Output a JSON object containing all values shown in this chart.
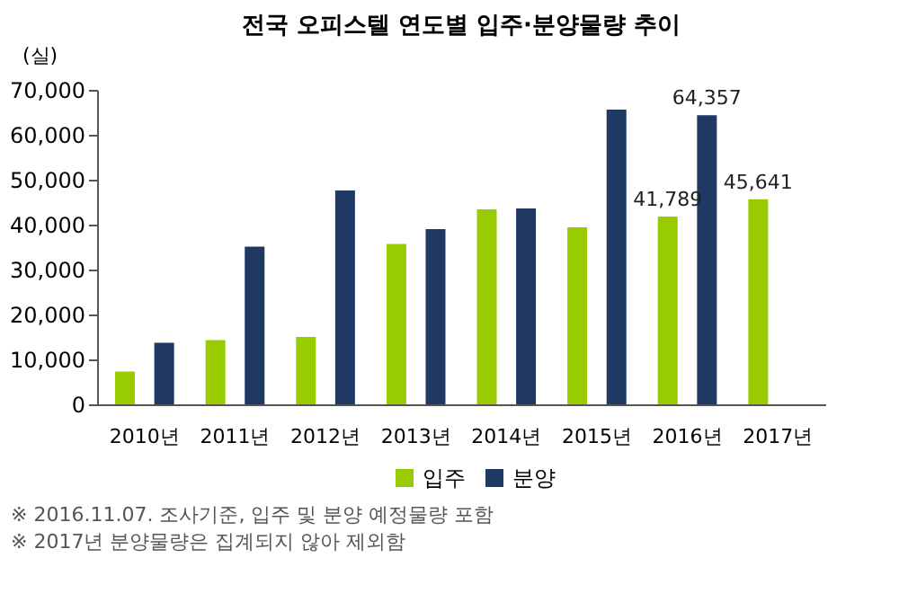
{
  "chart_data": {
    "type": "bar",
    "title": "전국 오피스텔 연도별 입주·분양물량 추이",
    "ylabel": "(실)",
    "categories": [
      "2010년",
      "2011년",
      "2012년",
      "2013년",
      "2014년",
      "2015년",
      "2016년",
      "2017년"
    ],
    "series": [
      {
        "name": "입주",
        "color": "#99cc00",
        "values": [
          7300,
          14300,
          15000,
          35700,
          43400,
          39400,
          41789,
          45641
        ],
        "value_labels": [
          null,
          null,
          null,
          null,
          null,
          null,
          "41,789",
          "45,641"
        ]
      },
      {
        "name": "분양",
        "color": "#1f3864",
        "values": [
          13700,
          35100,
          47600,
          39000,
          43600,
          65600,
          64357,
          null
        ],
        "value_labels": [
          null,
          null,
          null,
          null,
          null,
          null,
          "64,357",
          null
        ]
      }
    ],
    "ylim": [
      0,
      70000
    ],
    "yticks": [
      0,
      {
        "value": 10000,
        "label": "10,000"
      },
      {
        "value": 20000,
        "label": "20,000"
      },
      {
        "value": 30000,
        "label": "30,000"
      },
      {
        "value": 40000,
        "label": "40,000"
      },
      {
        "value": 50000,
        "label": "50,000"
      },
      {
        "value": 60000,
        "label": "60,000"
      },
      {
        "value": 70000,
        "label": "70,000"
      }
    ],
    "grid": false,
    "legend": "bottom",
    "annotations": [
      "※ 2016.11.07. 조사기준, 입주 및 분양 예정물량 포함",
      "※ 2017년 분양물량은 집계되지 않아 제외함"
    ]
  }
}
